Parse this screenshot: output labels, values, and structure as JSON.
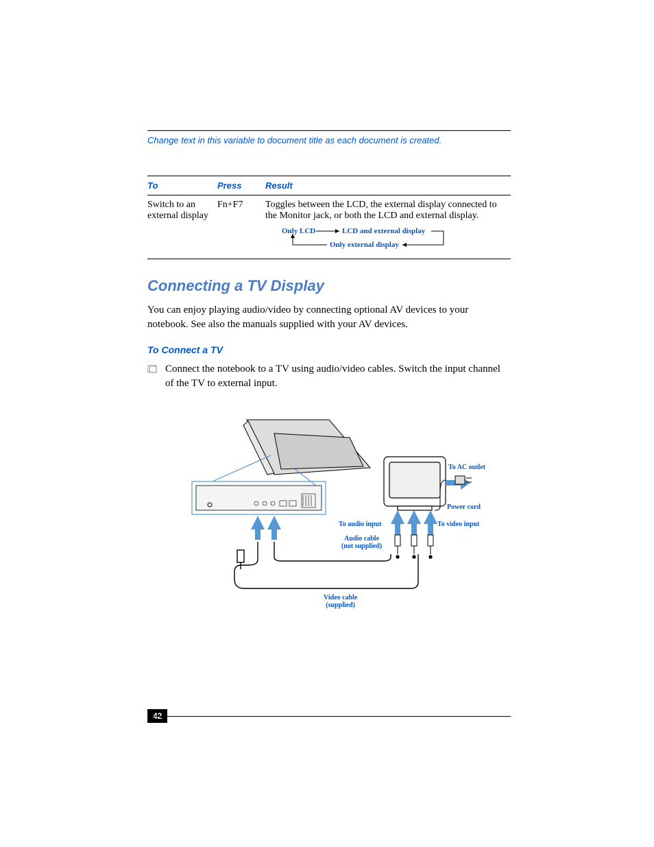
{
  "colors": {
    "accent": "#0055cc",
    "heading": "#4a7cc6",
    "arrow_fill": "#5698d4",
    "line": "#000000"
  },
  "header": {
    "variable_text": "Change text in this variable to document title as each document is created."
  },
  "table": {
    "columns": {
      "to": "To",
      "press": "Press",
      "result": "Result"
    },
    "rows": [
      {
        "to": "Switch to an external display",
        "press": "Fn+F7",
        "result": "Toggles between the LCD, the external display connected to the Monitor jack, or both the LCD and external display."
      }
    ]
  },
  "toggle_diagram": {
    "labels": {
      "only_lcd": "Only LCD",
      "lcd_ext": "LCD and external display",
      "only_ext": "Only external display"
    }
  },
  "section": {
    "h1": "Connecting a TV Display",
    "intro": "You can enjoy playing audio/video by connecting optional AV devices to your notebook. See also the manuals supplied with your AV devices.",
    "h2": "To Connect a TV",
    "bullet": "Connect the notebook to a TV using audio/video cables. Switch the input channel of the TV to external input."
  },
  "illustration": {
    "labels": {
      "to_ac": "To AC outlet",
      "power_cord": "Power cord",
      "to_video": "To video input",
      "to_audio": "To audio input",
      "audio_cable": "Audio cable\n(not supplied)",
      "video_cable": "Video cable\n(supplied)"
    }
  },
  "page_number": "42"
}
